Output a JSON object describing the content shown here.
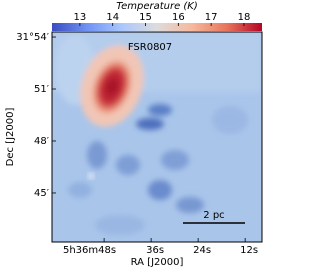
{
  "chart_data": {
    "type": "heatmap",
    "colorbar_label": "Temperature (K)",
    "clim": [
      12.15,
      18.55
    ],
    "cticks": [
      13,
      14,
      15,
      16,
      17,
      18
    ],
    "colormap": [
      "#3b4cc0",
      "#6f92f3",
      "#aac7fd",
      "#dddcdc",
      "#f7b89c",
      "#e7745b",
      "#b40426"
    ],
    "x_label": "RA [J2000]",
    "y_label": "Dec [J2000]",
    "xlim": [
      61.3,
      7.7
    ],
    "xticks": [
      {
        "value": 48,
        "label": "5h36m48s"
      },
      {
        "value": 36,
        "label": "36s"
      },
      {
        "value": 24,
        "label": "24s"
      },
      {
        "value": 12,
        "label": "12s"
      }
    ],
    "ylim": [
      42.17,
      54.29
    ],
    "yticks": [
      {
        "value": 54,
        "label": "31°54′"
      },
      {
        "value": 51,
        "label": "51′"
      },
      {
        "value": 48,
        "label": "48′"
      },
      {
        "value": 45,
        "label": "45′"
      }
    ],
    "annotations": [
      "FSR0807",
      "2 pc"
    ]
  }
}
